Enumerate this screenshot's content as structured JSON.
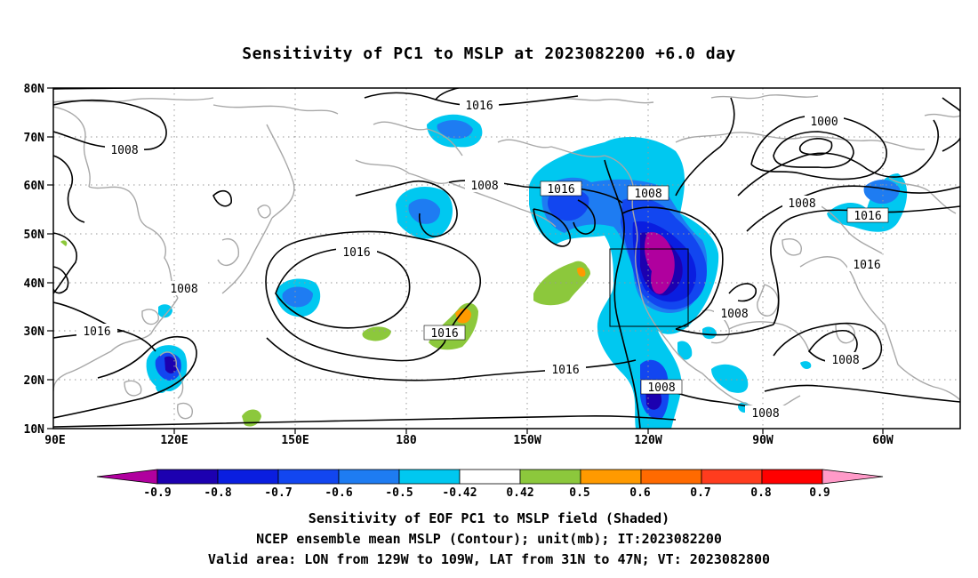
{
  "title": "Sensitivity of PC1 to MSLP at 2023082200 +6.0 day",
  "lat_labels": [
    "80N",
    "70N",
    "60N",
    "50N",
    "40N",
    "30N",
    "20N",
    "10N"
  ],
  "lon_labels": [
    "90E",
    "120E",
    "150E",
    "180",
    "150W",
    "120W",
    "90W",
    "60W"
  ],
  "contour_labels": [
    {
      "text": "1016"
    },
    {
      "text": "1008"
    },
    {
      "text": "1008"
    },
    {
      "text": "1016"
    },
    {
      "text": "1008"
    },
    {
      "text": "1000"
    },
    {
      "text": "1008"
    },
    {
      "text": "1016"
    },
    {
      "text": "1016"
    },
    {
      "text": "1008"
    },
    {
      "text": "1016"
    },
    {
      "text": "1016"
    },
    {
      "text": "1008"
    },
    {
      "text": "1016"
    },
    {
      "text": "1008"
    },
    {
      "text": "1008"
    },
    {
      "text": "1008"
    },
    {
      "text": "1016"
    }
  ],
  "colorbar": {
    "tick_labels": [
      "-0.9",
      "-0.8",
      "-0.7",
      "-0.6",
      "-0.5",
      "-0.42",
      "0.42",
      "0.5",
      "0.6",
      "0.7",
      "0.8",
      "0.9"
    ],
    "colors": [
      "#b0009e",
      "#1c00b0",
      "#0a1ee0",
      "#1246f0",
      "#1e7cf2",
      "#00c8f0",
      "#ffffff",
      "#8cc83c",
      "#ff9a00",
      "#ff6a00",
      "#ff3c1e",
      "#ff0000",
      "#ff9ac8"
    ]
  },
  "captions": {
    "line1": "Sensitivity of EOF PC1 to MSLP field (Shaded)",
    "line2": "NCEP ensemble mean MSLP (Contour); unit(mb); IT:2023082200",
    "line3": "Valid area: LON from 129W to 109W, LAT from 31N to 47N; VT: 2023082800"
  }
}
